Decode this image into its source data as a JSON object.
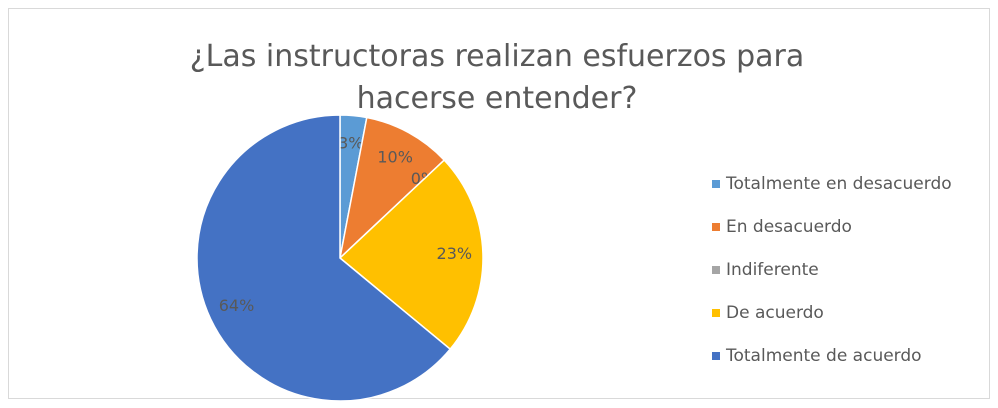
{
  "chart_data": {
    "type": "pie",
    "title": "¿Las instructoras realizan esfuerzos para hacerse entender?",
    "categories": [
      "Totalmente en desacuerdo",
      "En desacuerdo",
      "Indiferente",
      "De acuerdo",
      "Totalmente de acuerdo"
    ],
    "values": [
      3,
      10,
      0,
      23,
      64
    ],
    "value_labels": [
      "3%",
      "10%",
      "0%",
      "23%",
      "64%"
    ],
    "colors": [
      "#5b9bd5",
      "#ed7d31",
      "#a5a5a5",
      "#ffc000",
      "#4472c4"
    ],
    "legend": "right"
  }
}
